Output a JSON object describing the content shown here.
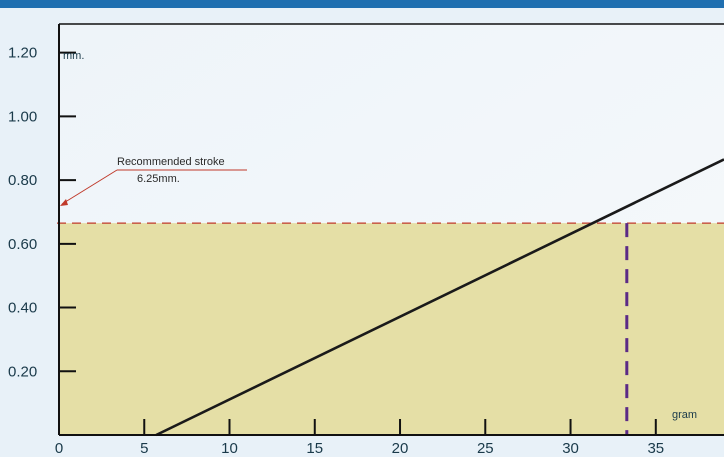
{
  "colors": {
    "background": "#e8f1f8",
    "top_bar": "#1f6fb0",
    "plot_background": "#f2f6f9",
    "shaded_region": "#e5dfa6",
    "data_line": "#1a1a1a",
    "reference_line": "#c0392b",
    "vertical_marker": "#5b2a86",
    "axis_frame": "#111111"
  },
  "chart_data": {
    "type": "line",
    "title": "",
    "xlabel": "",
    "ylabel": "",
    "x_unit_label": "gram",
    "y_unit_label": "mm.",
    "xlim": [
      0,
      39
    ],
    "ylim": [
      0,
      1.29
    ],
    "x_ticks": [
      0,
      5,
      10,
      15,
      20,
      25,
      30,
      35
    ],
    "y_ticks": [
      0.2,
      0.4,
      0.6,
      0.8,
      1.0,
      1.2
    ],
    "x_tick_labels": [
      "0",
      "5",
      "10",
      "15",
      "20",
      "25",
      "30",
      "35"
    ],
    "y_tick_labels": [
      "0.20",
      "0.40",
      "0.60",
      "0.80",
      "1.00",
      "1.20"
    ],
    "grid": false,
    "series": [
      {
        "x": [
          5.7,
          39.0
        ],
        "y": [
          0.0,
          0.865
        ]
      }
    ],
    "reference_y": 0.665,
    "marker_x": 33.3,
    "annotation": {
      "line1": "Recommended stroke",
      "line2": "6.25mm."
    }
  }
}
